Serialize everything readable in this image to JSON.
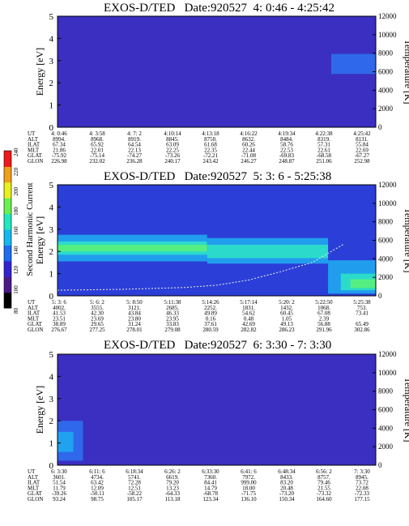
{
  "chart_data": [
    {
      "type": "heatmap",
      "title": "EXOS-D/TED   Date:920527  4: 0:46 - 4:25:42",
      "ylabel": "Energy [eV]",
      "ylabel_right": "Temperature [K]",
      "ylim": [
        0,
        5
      ],
      "y_ticks": [
        "0",
        "1",
        "2",
        "3",
        "4",
        "5"
      ],
      "ylim_right": [
        0,
        12000
      ],
      "y_ticks_right": [
        "0",
        "2000",
        "4000",
        "6000",
        "8000",
        "10000",
        "12000"
      ],
      "background_color": "#3a2fc0",
      "bands": [
        {
          "x_start": 0.86,
          "x_end": 1.0,
          "y_low": 2.4,
          "y_high": 3.3,
          "color": "#2f6ff0"
        }
      ],
      "table": {
        "row_labels": [
          "UT",
          "ALT",
          "ILAT",
          "MLT",
          "GLAT",
          "GLON"
        ],
        "columns": [
          [
            "4: 0:46",
            "8994.",
            "67.34",
            "21.86",
            "-75.92",
            "226.98"
          ],
          [
            "4: 3:58",
            "8968.",
            "65.92",
            "22.01",
            "-75.14",
            "232.02"
          ],
          [
            "4: 7: 2",
            "8919.",
            "64.54",
            "22.13",
            "-74.27",
            "236.28"
          ],
          [
            "4:10:14",
            "8845.",
            "63.09",
            "22.25",
            "-73.26",
            "240.17"
          ],
          [
            "4:13:18",
            "8750.",
            "61.68",
            "22.35",
            "-72.21",
            "243.42"
          ],
          [
            "4:16:22",
            "8632.",
            "60.26",
            "22.44",
            "-71.08",
            "246.27"
          ],
          [
            "4:19:34",
            "8484.",
            "58.76",
            "22.53",
            "-69.83",
            "248.87"
          ],
          [
            "4:22:38",
            "8319.",
            "57.31",
            "22.61",
            "-68.58",
            "251.06"
          ],
          [
            "4:25:42",
            "8131.",
            "55.84",
            "22.69",
            "-67.27",
            "252.98"
          ]
        ]
      }
    },
    {
      "type": "heatmap",
      "title": "EXOS-D/TED   Date:920527  5: 3: 6 - 5:25:38",
      "ylabel": "Energy [eV]",
      "ylabel_right": "Temperature [K]",
      "ylim": [
        0,
        5
      ],
      "y_ticks": [
        "0",
        "1",
        "2",
        "3",
        "4",
        "5"
      ],
      "ylim_right": [
        0,
        12000
      ],
      "y_ticks_right": [
        "0",
        "2000",
        "4000",
        "6000",
        "8000",
        "10000",
        "12000"
      ],
      "background_color": "#2b3fd8",
      "bands": [
        {
          "x_start": 0.0,
          "x_end": 0.47,
          "y_low": 1.55,
          "y_high": 2.75,
          "color": "#1fa8f0"
        },
        {
          "x_start": 0.0,
          "x_end": 0.47,
          "y_low": 1.85,
          "y_high": 2.45,
          "color": "#2ee0c8"
        },
        {
          "x_start": 0.0,
          "x_end": 0.47,
          "y_low": 2.0,
          "y_high": 2.3,
          "color": "#5af07a"
        },
        {
          "x_start": 0.47,
          "x_end": 0.85,
          "y_low": 1.45,
          "y_high": 2.6,
          "color": "#1fa8f0"
        },
        {
          "x_start": 0.47,
          "x_end": 0.85,
          "y_low": 1.7,
          "y_high": 2.3,
          "color": "#2ee0c8"
        },
        {
          "x_start": 0.85,
          "x_end": 1.0,
          "y_low": 0.1,
          "y_high": 1.6,
          "color": "#1fa8f0"
        },
        {
          "x_start": 0.89,
          "x_end": 1.0,
          "y_low": 0.25,
          "y_high": 1.0,
          "color": "#2ee0c8"
        },
        {
          "x_start": 0.92,
          "x_end": 1.0,
          "y_low": 0.35,
          "y_high": 0.75,
          "color": "#5af07a"
        }
      ],
      "temperature_trace": {
        "x": [
          0.0,
          0.2,
          0.4,
          0.5,
          0.6,
          0.7,
          0.8,
          0.85,
          0.9
        ],
        "y": [
          600,
          700,
          900,
          1150,
          1700,
          2600,
          3600,
          4600,
          5600
        ],
        "color": "#f0f0f0"
      },
      "colorbar": {
        "label": "Second Harmonic Current",
        "ticks": [
          "80",
          "100",
          "120",
          "140",
          "160",
          "180",
          "200",
          "220",
          "240"
        ],
        "colors": [
          "#000000",
          "#4a1a8a",
          "#3322d0",
          "#1e6cf0",
          "#16b8f0",
          "#20e8c0",
          "#6af050",
          "#e8f020",
          "#f0a018",
          "#f01818"
        ]
      },
      "table": {
        "row_labels": [
          "UT",
          "ALT",
          "ILAT",
          "MLT",
          "GLAT",
          "GLON"
        ],
        "columns": [
          [
            "5: 3: 6",
            "4002.",
            "41.53",
            "23.51",
            "38.89",
            "276.67"
          ],
          [
            "5: 6: 2",
            "3555.",
            "42.30",
            "23.69",
            "29.65",
            "277.25"
          ],
          [
            "5: 8:50",
            "3121.",
            "43.84",
            "23.80",
            "31.24",
            "278.01"
          ],
          [
            "5:11:38",
            "2685.",
            "46.33",
            "23.95",
            "33.83",
            "279.08"
          ],
          [
            "5:14:26",
            "2252.",
            "49.89",
            "0.16",
            "37.61",
            "280.59"
          ],
          [
            "5:17:14",
            "1831.",
            "54.62",
            "0.48",
            "42.69",
            "282.82"
          ],
          [
            "5:20: 2",
            "1432.",
            "60.45",
            "1.05",
            "49.13",
            "286.23"
          ],
          [
            "5:22:50",
            "1068.",
            "67.08",
            "2.39",
            "56.88",
            "291.96"
          ],
          [
            "5:25:38",
            "753.",
            "73.41",
            "",
            "65.49",
            "302.86"
          ]
        ]
      }
    },
    {
      "type": "heatmap",
      "title": "EXOS-D/TED   Date:920527  6: 3:30 - 7: 3:30",
      "ylabel": "Energy [eV]",
      "ylabel_right": "Temperature [K]",
      "ylim": [
        0,
        5
      ],
      "y_ticks": [
        "0",
        "1",
        "2",
        "3",
        "4",
        "5"
      ],
      "ylim_right": [
        0,
        12000
      ],
      "y_ticks_right": [
        "0",
        "2000",
        "4000",
        "6000",
        "8000",
        "10000",
        "12000"
      ],
      "background_color": "#3a2fc0",
      "bands": [
        {
          "x_start": 0.0,
          "x_end": 0.08,
          "y_low": 0.2,
          "y_high": 2.0,
          "color": "#2f6ff0"
        },
        {
          "x_start": 0.0,
          "x_end": 0.05,
          "y_low": 0.6,
          "y_high": 1.5,
          "color": "#1fa8f0"
        }
      ],
      "table": {
        "row_labels": [
          "UT",
          "ALT",
          "ILAT",
          "MLT",
          "GLAT",
          "GLON"
        ],
        "columns": [
          [
            "6: 3:30",
            "3601.",
            "51.54",
            "11.79",
            "-39.26",
            "93.24"
          ],
          [
            "6:11: 6",
            "4734.",
            "63.42",
            "12.09",
            "-50.11",
            "98.75"
          ],
          [
            "6:18:34",
            "5741.",
            "72.28",
            "12.51",
            "-58.22",
            "105.17"
          ],
          [
            "6:26: 2",
            "6619.",
            "79.20",
            "13.23",
            "-64.33",
            "113.18"
          ],
          [
            "6:33:30",
            "7360.",
            "84.41",
            "14.79",
            "-68.78",
            "123.34"
          ],
          [
            "6:41: 6",
            "7972.",
            "999.00",
            "18.00",
            "-71.75",
            "136.10"
          ],
          [
            "6:48:34",
            "8433.",
            "83.20",
            "20.48",
            "-73.20",
            "150.34"
          ],
          [
            "6:56: 2",
            "8757.",
            "79.46",
            "21.55",
            "-73.32",
            "164.60"
          ],
          [
            "7: 3:30",
            "8945.",
            "73.72",
            "22.08",
            "-72.33",
            "177.15"
          ]
        ]
      }
    }
  ]
}
